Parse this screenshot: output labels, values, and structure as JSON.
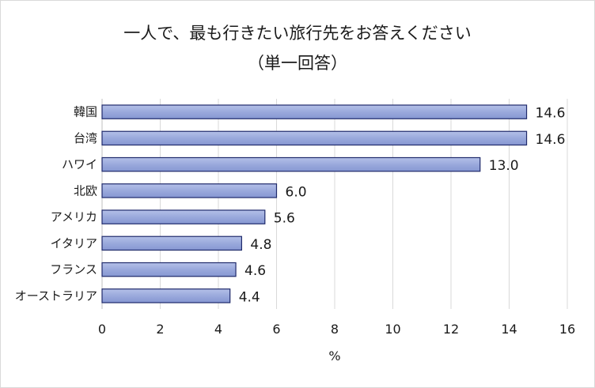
{
  "chart_data": {
    "type": "bar",
    "orientation": "horizontal",
    "title": "一人で、最も行きたい旅行先をお答えください",
    "subtitle": "（単一回答）",
    "categories": [
      "韓国",
      "台湾",
      "ハワイ",
      "北欧",
      "アメリカ",
      "イタリア",
      "フランス",
      "オーストラリア"
    ],
    "values": [
      14.6,
      14.6,
      13.0,
      6.0,
      5.6,
      4.8,
      4.6,
      4.4
    ],
    "value_labels": [
      "14.6",
      "14.6",
      "13.0",
      "6.0",
      "5.6",
      "4.8",
      "4.6",
      "4.4"
    ],
    "xlabel": "%",
    "ylabel": "",
    "xlim": [
      0,
      16
    ],
    "xticks": [
      0,
      2,
      4,
      6,
      8,
      10,
      12,
      14,
      16
    ],
    "grid": true,
    "legend": "none",
    "colors": {
      "bar_fill": "#9aa9dc",
      "bar_stroke": "#1f2a6b",
      "grid": "#d9d9d9"
    }
  }
}
